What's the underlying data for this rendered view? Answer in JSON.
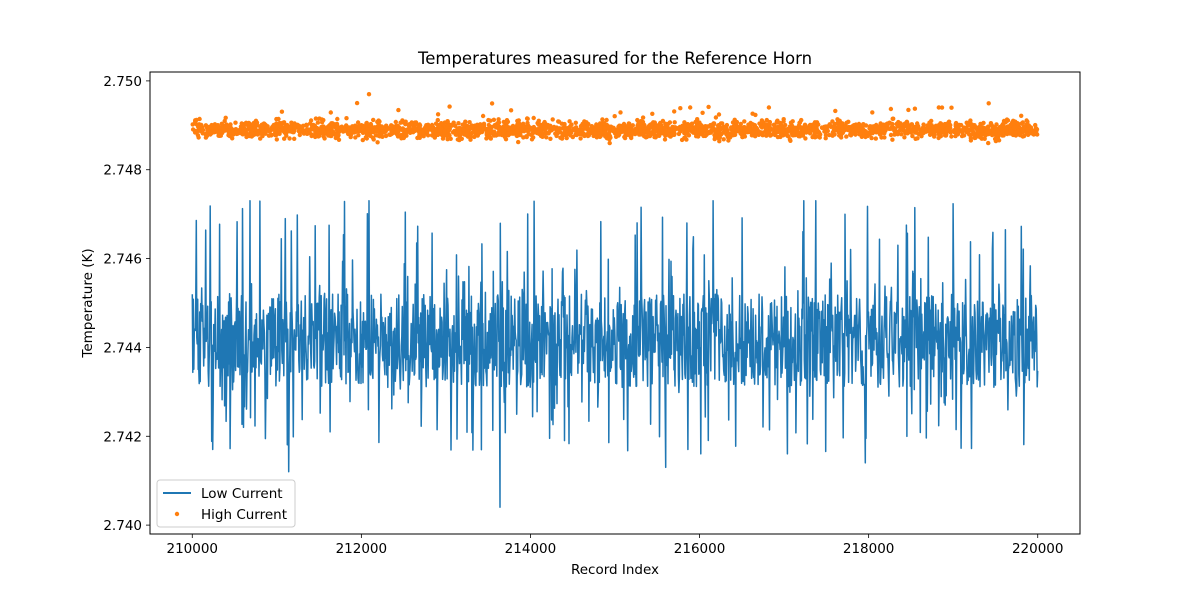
{
  "chart_data": {
    "type": "line",
    "title": "Temperatures measured for the Reference Horn",
    "xlabel": "Record Index",
    "ylabel": "Temperature (K)",
    "xlim": [
      209500,
      220500
    ],
    "ylim": [
      2.7398,
      2.7502
    ],
    "xticks": [
      210000,
      212000,
      214000,
      216000,
      218000,
      220000
    ],
    "xtick_labels": [
      "210000",
      "212000",
      "214000",
      "216000",
      "218000",
      "220000"
    ],
    "yticks": [
      2.74,
      2.742,
      2.744,
      2.746,
      2.748,
      2.75
    ],
    "ytick_labels": [
      "2.740",
      "2.742",
      "2.744",
      "2.746",
      "2.748",
      "2.750"
    ],
    "grid": false,
    "legend_position": "lower-left",
    "series": [
      {
        "name": "Low Current",
        "style": "line",
        "color": "#1f77b4",
        "x_range": [
          210000,
          220000
        ],
        "count": 10000,
        "baseline": 2.7444,
        "typical_range": [
          2.7431,
          2.7452
        ],
        "min": 2.7404,
        "max": 2.7473,
        "notable_points": [
          {
            "x": 213640,
            "y": 2.7404
          },
          {
            "x": 212090,
            "y": 2.7473
          },
          {
            "x": 216160,
            "y": 2.7473
          },
          {
            "x": 211100,
            "y": 2.7469
          },
          {
            "x": 217720,
            "y": 2.747
          },
          {
            "x": 215850,
            "y": 2.7468
          },
          {
            "x": 211140,
            "y": 2.7412
          },
          {
            "x": 217960,
            "y": 2.7414
          },
          {
            "x": 215600,
            "y": 2.7413
          }
        ]
      },
      {
        "name": "High Current",
        "style": "scatter",
        "color": "#ff7f0e",
        "x_range": [
          210000,
          220000
        ],
        "count": 10000,
        "baseline": 2.7489,
        "typical_range": [
          2.7487,
          2.7492
        ],
        "min": 2.7486,
        "max": 2.7498,
        "notable_points": [
          {
            "x": 212090,
            "y": 2.7497
          },
          {
            "x": 211950,
            "y": 2.7495
          },
          {
            "x": 216820,
            "y": 2.7494
          },
          {
            "x": 215890,
            "y": 2.7494
          },
          {
            "x": 218830,
            "y": 2.7494
          }
        ]
      }
    ]
  }
}
